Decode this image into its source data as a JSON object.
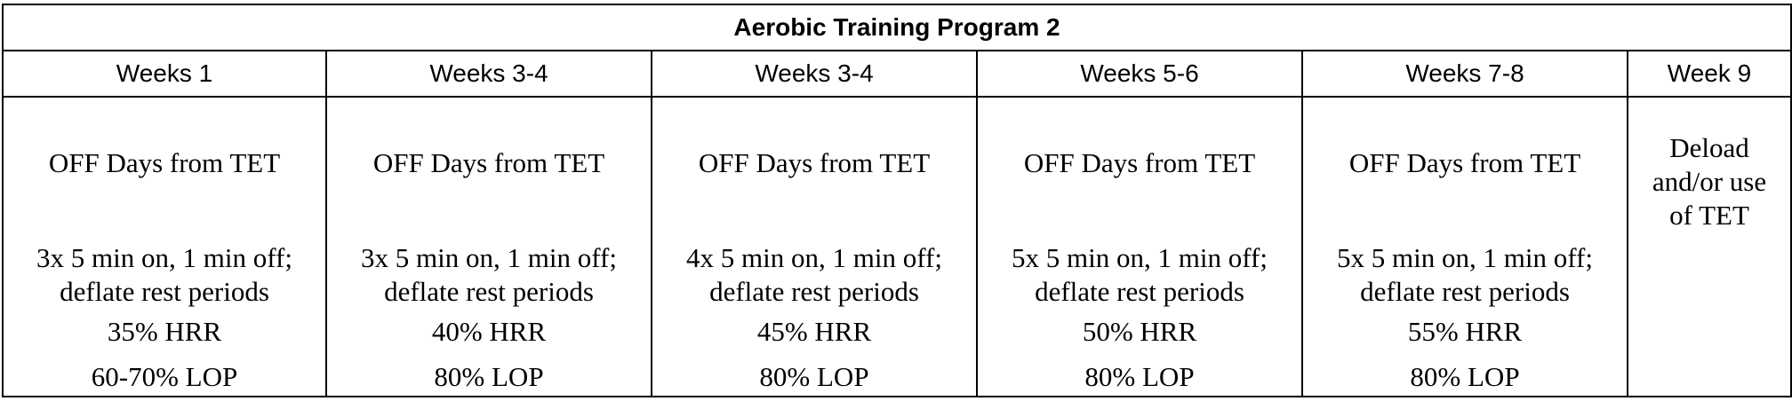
{
  "title": "Aerobic Training Program 2",
  "columns": [
    {
      "week": "Weeks 1",
      "off_days": "OFF Days from TET",
      "schedule_line1": "3x 5 min on, 1 min off;",
      "schedule_line2": "deflate rest periods",
      "hrr": "35% HRR",
      "lop": "60-70% LOP"
    },
    {
      "week": "Weeks 3-4",
      "off_days": "OFF Days from TET",
      "schedule_line1": "3x 5 min on, 1 min off;",
      "schedule_line2": "deflate rest periods",
      "hrr": "40% HRR",
      "lop": "80% LOP"
    },
    {
      "week": "Weeks 3-4",
      "off_days": "OFF Days from TET",
      "schedule_line1": "4x 5 min on, 1 min off;",
      "schedule_line2": "deflate rest periods",
      "hrr": "45% HRR",
      "lop": "80% LOP"
    },
    {
      "week": "Weeks 5-6",
      "off_days": "OFF Days from TET",
      "schedule_line1": "5x 5 min on, 1 min off;",
      "schedule_line2": "deflate rest periods",
      "hrr": "50% HRR",
      "lop": "80% LOP"
    },
    {
      "week": "Weeks 7-8",
      "off_days": "OFF Days from TET",
      "schedule_line1": "5x 5 min on, 1 min off;",
      "schedule_line2": "deflate rest periods",
      "hrr": "55% HRR",
      "lop": "80% LOP"
    }
  ],
  "last_column": {
    "week": "Week 9",
    "text_line1": "Deload",
    "text_line2": "and/or use",
    "text_line3": "of TET"
  },
  "colors": {
    "border": "#000000",
    "text": "#000000",
    "background": "#ffffff"
  }
}
